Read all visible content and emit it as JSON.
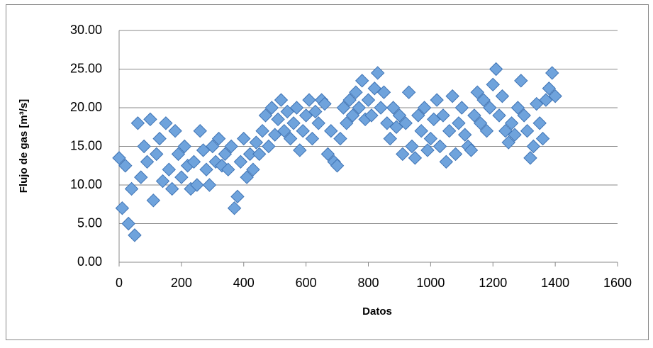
{
  "chart_data": {
    "type": "scatter",
    "x_label": "Datos",
    "y_label": "Flujo de gas [m³/s]",
    "color": "#6fa3dc",
    "edge_color": "#3f74b5",
    "xlim": [
      0,
      1600
    ],
    "xticks": [
      0,
      200,
      400,
      600,
      800,
      1000,
      1200,
      1400,
      1600
    ],
    "ylim": [
      0,
      30
    ],
    "yticks": [
      {
        "value": 0,
        "label": "0.00"
      },
      {
        "value": 5,
        "label": "5.00"
      },
      {
        "value": 10,
        "label": "10.00"
      },
      {
        "value": 15,
        "label": "15.00"
      },
      {
        "value": 20,
        "label": "20.00"
      },
      {
        "value": 25,
        "label": "25.00"
      },
      {
        "value": 30,
        "label": "30.00"
      }
    ],
    "grid": true,
    "x": [
      0,
      10,
      20,
      30,
      40,
      50,
      60,
      70,
      80,
      90,
      100,
      110,
      120,
      130,
      140,
      150,
      160,
      170,
      180,
      190,
      200,
      210,
      220,
      230,
      240,
      250,
      260,
      270,
      280,
      290,
      300,
      310,
      320,
      330,
      340,
      350,
      360,
      370,
      380,
      390,
      400,
      410,
      420,
      430,
      440,
      450,
      460,
      470,
      480,
      490,
      500,
      510,
      520,
      530,
      540,
      550,
      560,
      570,
      580,
      590,
      600,
      610,
      620,
      630,
      640,
      650,
      660,
      670,
      680,
      690,
      700,
      710,
      720,
      730,
      740,
      750,
      760,
      770,
      780,
      790,
      800,
      810,
      820,
      830,
      840,
      850,
      860,
      870,
      880,
      890,
      900,
      910,
      920,
      930,
      940,
      950,
      960,
      970,
      980,
      990,
      1000,
      1010,
      1020,
      1030,
      1040,
      1050,
      1060,
      1070,
      1080,
      1090,
      1100,
      1110,
      1120,
      1130,
      1140,
      1150,
      1160,
      1170,
      1180,
      1190,
      1200,
      1210,
      1220,
      1230,
      1240,
      1250,
      1260,
      1270,
      1280,
      1290,
      1300,
      1310,
      1320,
      1330,
      1340,
      1350,
      1360,
      1370,
      1380,
      1390,
      1400
    ],
    "values": [
      13.5,
      7,
      12.5,
      5,
      9.5,
      3.5,
      18,
      11,
      15,
      13,
      18.5,
      8,
      14,
      16,
      10.5,
      18,
      12,
      9.5,
      17,
      14,
      11,
      15,
      12.5,
      9.5,
      13,
      10,
      17,
      14.5,
      12,
      10,
      15,
      13,
      16,
      12.5,
      14,
      12,
      15,
      7,
      8.5,
      13,
      16,
      11,
      14,
      12,
      15.5,
      14,
      17,
      19,
      15,
      20,
      16.5,
      18.5,
      21,
      17,
      19.5,
      16,
      18,
      20,
      14.5,
      17,
      19,
      21,
      16,
      19.5,
      18,
      21,
      20.5,
      14,
      17,
      13,
      12.5,
      16,
      20,
      18,
      21,
      19,
      22,
      20,
      23.5,
      18.5,
      21,
      19,
      22.5,
      24.5,
      20,
      22,
      18,
      16,
      20,
      17.5,
      19,
      14,
      18,
      22,
      15,
      13.5,
      19,
      17,
      20,
      14.5,
      16,
      18.5,
      21,
      15,
      19,
      13,
      17,
      21.5,
      14,
      18,
      20,
      16.5,
      15,
      14.5,
      19,
      22,
      18,
      21,
      17,
      20,
      23,
      25,
      19,
      21.5,
      17,
      15.5,
      18,
      16.5,
      20,
      23.5,
      19,
      17,
      13.5,
      15,
      20.5,
      18,
      16,
      21,
      22.5,
      24.5,
      21.5
    ]
  }
}
